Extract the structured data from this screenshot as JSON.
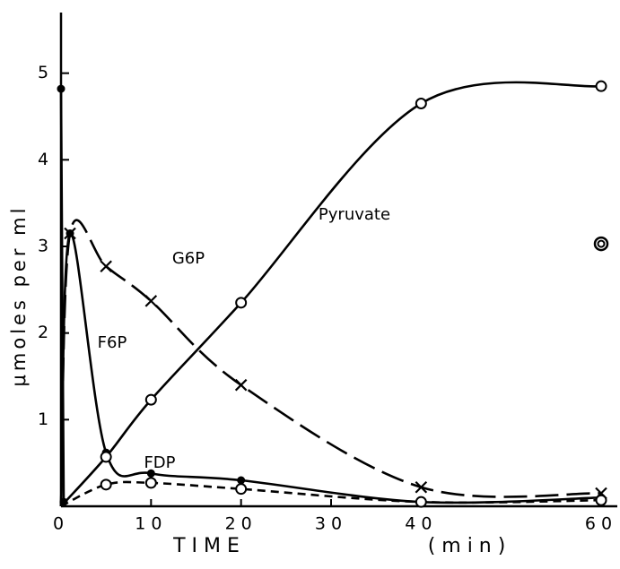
{
  "chart_data": {
    "type": "line",
    "xlabel": "T I M E",
    "xunit": "( m i n )",
    "ylabel": "μmoles per ml",
    "xlim": [
      0,
      60
    ],
    "ylim": [
      0,
      5.7
    ],
    "xticks": [
      0,
      10,
      20,
      30,
      40,
      60
    ],
    "yticks": [
      1,
      2,
      3,
      4,
      5
    ],
    "grid": false,
    "annotations": [
      "Pyruvate",
      "G6P",
      "F6P",
      "FDP"
    ],
    "series": [
      {
        "color": "#000000",
        "marker": "dot",
        "line_style": "solid",
        "x": [
          0,
          0.3
        ],
        "values": [
          4.82,
          0.05
        ]
      },
      {
        "name": "F6P",
        "color": "#000000",
        "marker": "dot",
        "line_style": "solid",
        "x": [
          0,
          1,
          5,
          10,
          20,
          40,
          60
        ],
        "values": [
          0,
          3.15,
          0.62,
          0.38,
          0.3,
          0.05,
          0.1
        ]
      },
      {
        "name": "G6P",
        "color": "#000000",
        "marker": "x",
        "line_style": "dashed",
        "x": [
          0,
          1,
          5,
          10,
          20,
          40,
          60
        ],
        "values": [
          0,
          3.15,
          2.77,
          2.37,
          1.4,
          0.22,
          0.15
        ]
      },
      {
        "name": "FDP",
        "color": "#000000",
        "marker": "circle",
        "line_style": "dotted",
        "x": [
          0,
          5,
          10,
          20,
          40,
          60
        ],
        "values": [
          0,
          0.25,
          0.27,
          0.2,
          0.05,
          0.07
        ]
      },
      {
        "name": "Pyruvate",
        "color": "#000000",
        "marker": "circle",
        "line_style": "solid",
        "x": [
          0,
          5,
          10,
          20,
          40,
          60
        ],
        "values": [
          0,
          0.57,
          1.23,
          2.35,
          4.65,
          4.85
        ]
      },
      {
        "color": "#000000",
        "marker": "double-circle",
        "line_style": "none",
        "x": [
          60
        ],
        "values": [
          3.03
        ]
      }
    ]
  }
}
